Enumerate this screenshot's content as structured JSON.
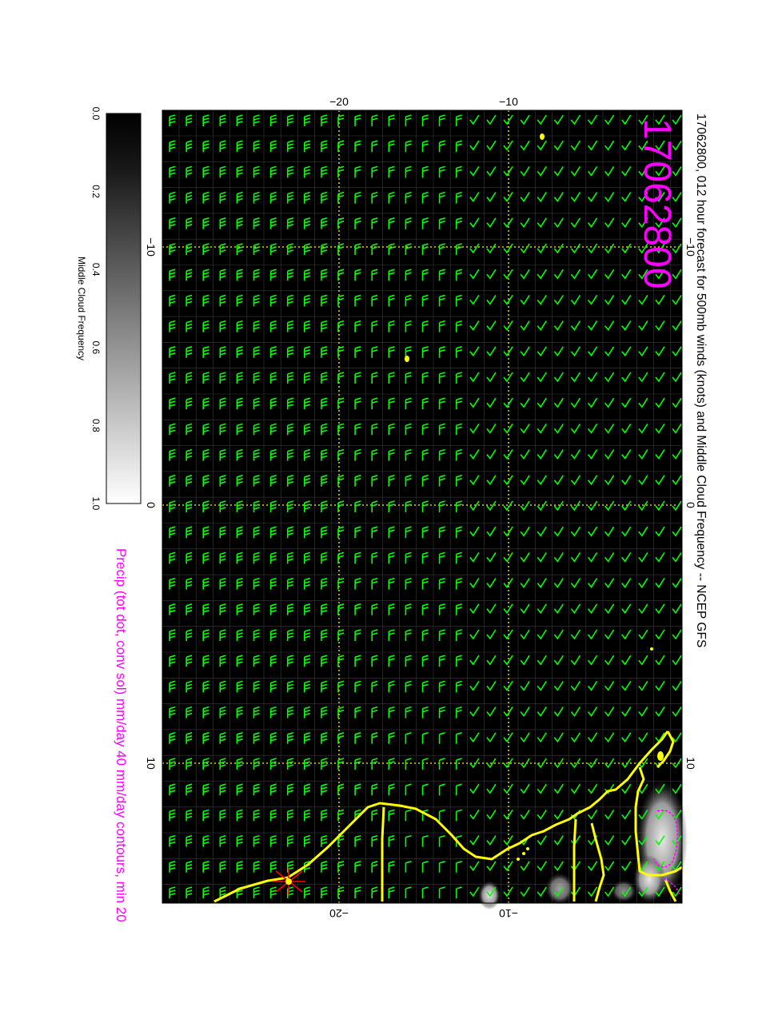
{
  "title": "17062800, 012 hour forecast for 500mb winds (knots) and Middle Cloud Frequency -- NCEP GFS",
  "stamp": "17062800",
  "precip_caption": "Precip (tot dot, conv sol) mm/day 40 mm/day contours, min 20",
  "colorbar": {
    "label": "Middle Cloud Frequency",
    "ticks": [
      "0.0",
      "0.2",
      "0.4",
      "0.6",
      "0.8",
      "1.0"
    ],
    "colors": {
      "low": "#000000",
      "high": "#ffffff"
    }
  },
  "axes": {
    "top_ticks": [
      "−20",
      "−10"
    ],
    "bottom_ticks": [
      "−20",
      "−10"
    ],
    "left_ticks": [
      "−10",
      "0",
      "10"
    ],
    "right_ticks": [
      "−10",
      "0",
      "10"
    ]
  },
  "colors": {
    "barbs": "#00ff00",
    "coast": "#ffff00",
    "grid": "#ffff00",
    "magenta": "#ff00ff",
    "background": "#000000"
  }
}
